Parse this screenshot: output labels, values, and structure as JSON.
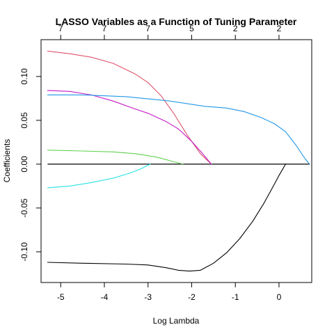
{
  "chart_data": {
    "type": "line",
    "title": "LASSO Variables as a Function of Tuning Parameter",
    "xlabel": "Log Lambda",
    "ylabel": "Coefficients",
    "xlim": [
      -5.45,
      0.75
    ],
    "ylim": [
      -0.135,
      0.142
    ],
    "x_ticks": [
      -5,
      -4,
      -3,
      -2,
      -1,
      0
    ],
    "y_ticks": [
      -0.1,
      -0.05,
      0.0,
      0.05,
      0.1
    ],
    "y_tick_labels": [
      "-0.10",
      "-0.05",
      "0.00",
      "0.05",
      "0.10"
    ],
    "top_axis": {
      "positions": [
        -5,
        -4,
        -3,
        -2,
        -1,
        0
      ],
      "labels": [
        "7",
        "7",
        "7",
        "5",
        "2",
        "2"
      ]
    },
    "zero_line": true,
    "grid": false,
    "legend": "none",
    "series": [
      {
        "color": "#df536b",
        "points": [
          [
            -5.3,
            0.129
          ],
          [
            -4.8,
            0.126
          ],
          [
            -4.3,
            0.122
          ],
          [
            -3.8,
            0.115
          ],
          [
            -3.3,
            0.103
          ],
          [
            -3.0,
            0.093
          ],
          [
            -2.7,
            0.078
          ],
          [
            -2.4,
            0.057
          ],
          [
            -2.1,
            0.033
          ],
          [
            -1.8,
            0.012
          ],
          [
            -1.55,
            0.0
          ]
        ]
      },
      {
        "color": "#c418c4",
        "points": [
          [
            -5.3,
            0.084
          ],
          [
            -4.8,
            0.083
          ],
          [
            -4.3,
            0.079
          ],
          [
            -3.8,
            0.072
          ],
          [
            -3.3,
            0.063
          ],
          [
            -3.0,
            0.058
          ],
          [
            -2.6,
            0.049
          ],
          [
            -2.3,
            0.04
          ],
          [
            -2.0,
            0.026
          ],
          [
            -1.75,
            0.012
          ],
          [
            -1.55,
            0.0
          ]
        ]
      },
      {
        "color": "#2297e6",
        "points": [
          [
            -5.3,
            0.079
          ],
          [
            -4.5,
            0.079
          ],
          [
            -3.5,
            0.077
          ],
          [
            -2.5,
            0.072
          ],
          [
            -1.7,
            0.066
          ],
          [
            -1.2,
            0.064
          ],
          [
            -0.8,
            0.06
          ],
          [
            -0.4,
            0.053
          ],
          [
            -0.1,
            0.046
          ],
          [
            0.15,
            0.037
          ],
          [
            0.4,
            0.021
          ],
          [
            0.6,
            0.006
          ],
          [
            0.7,
            0.0
          ]
        ]
      },
      {
        "color": "#61d04f",
        "points": [
          [
            -5.3,
            0.016
          ],
          [
            -4.5,
            0.015
          ],
          [
            -3.8,
            0.014
          ],
          [
            -3.3,
            0.012
          ],
          [
            -2.8,
            0.008
          ],
          [
            -2.5,
            0.004
          ],
          [
            -2.2,
            0.0
          ]
        ]
      },
      {
        "color": "#28e2e5",
        "points": [
          [
            -5.3,
            -0.027
          ],
          [
            -4.8,
            -0.025
          ],
          [
            -4.3,
            -0.021
          ],
          [
            -3.8,
            -0.016
          ],
          [
            -3.4,
            -0.01
          ],
          [
            -3.15,
            -0.005
          ],
          [
            -2.95,
            0.0
          ]
        ]
      },
      {
        "color": "#000000",
        "points": [
          [
            -5.3,
            -0.112
          ],
          [
            -4.5,
            -0.113
          ],
          [
            -3.5,
            -0.114
          ],
          [
            -3.0,
            -0.115
          ],
          [
            -2.6,
            -0.118
          ],
          [
            -2.3,
            -0.121
          ],
          [
            -2.05,
            -0.122
          ],
          [
            -1.8,
            -0.121
          ],
          [
            -1.5,
            -0.113
          ],
          [
            -1.2,
            -0.101
          ],
          [
            -0.9,
            -0.085
          ],
          [
            -0.6,
            -0.065
          ],
          [
            -0.35,
            -0.045
          ],
          [
            -0.15,
            -0.027
          ],
          [
            0.0,
            -0.013
          ],
          [
            0.15,
            0.0
          ]
        ]
      }
    ]
  }
}
